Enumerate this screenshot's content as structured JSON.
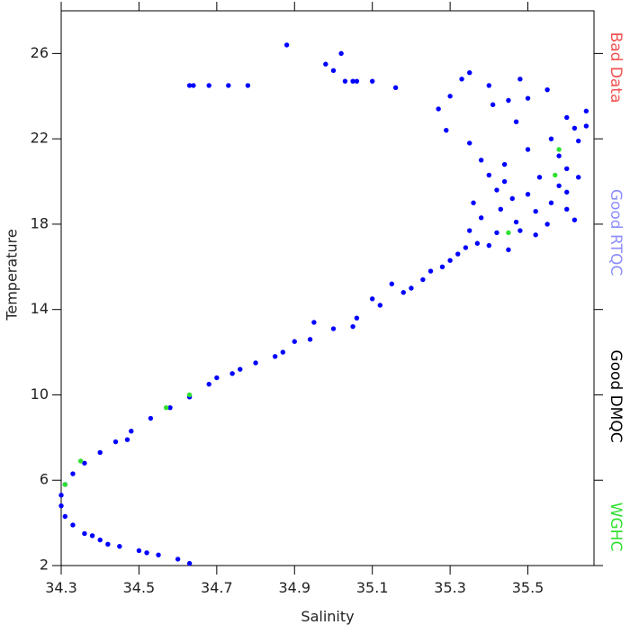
{
  "chart_data": {
    "type": "scatter",
    "x_label": "Salinity",
    "y_label": "Temperature",
    "xlim": [
      34.3,
      35.67
    ],
    "ylim": [
      2,
      28
    ],
    "xticks": [
      34.3,
      34.5,
      34.7,
      34.9,
      35.1,
      35.3,
      35.5
    ],
    "yticks": [
      2,
      6,
      10,
      14,
      18,
      22,
      26
    ],
    "grid": false,
    "series": [
      {
        "name": "Bad Data",
        "color": "#f05050",
        "x": [],
        "y": []
      },
      {
        "name": "Good RTQC",
        "color": "#0000ff",
        "x": [
          34.63,
          34.6,
          34.55,
          34.5,
          34.45,
          34.4,
          34.36,
          34.33,
          34.31,
          34.3,
          34.3,
          34.31,
          34.33,
          34.36,
          34.4,
          34.44,
          34.48,
          34.53,
          34.58,
          34.63,
          34.68,
          34.74,
          34.8,
          34.87,
          34.94,
          35.0,
          35.06,
          35.12,
          35.18,
          35.23,
          35.28,
          35.32,
          35.37,
          35.42,
          35.47,
          35.52,
          35.56,
          35.6,
          35.63,
          34.95,
          35.05,
          34.85,
          34.9,
          35.15,
          35.25,
          34.42,
          34.38,
          34.52,
          34.47,
          34.7,
          34.76,
          35.1,
          35.2,
          35.3,
          35.34,
          34.63,
          34.64,
          34.68,
          34.73,
          34.78,
          34.88,
          34.98,
          35.0,
          35.02,
          35.03,
          35.05,
          35.06,
          35.1,
          35.16,
          35.3,
          35.33,
          35.35,
          35.4,
          35.45,
          35.48,
          35.55,
          35.6,
          35.62,
          35.65,
          35.27,
          35.29,
          35.35,
          35.38,
          35.4,
          35.42,
          35.44,
          35.46,
          35.5,
          35.53,
          35.56,
          35.58,
          35.6,
          35.63,
          35.65,
          35.36,
          35.38,
          35.43,
          35.48,
          35.5,
          35.55,
          35.6,
          35.4,
          35.45,
          35.35,
          35.52,
          35.58,
          35.47,
          35.41,
          35.5,
          35.62,
          35.44
        ],
        "y": [
          2.1,
          2.3,
          2.5,
          2.7,
          2.9,
          3.2,
          3.5,
          3.9,
          4.3,
          4.8,
          5.3,
          5.8,
          6.3,
          6.8,
          7.3,
          7.8,
          8.3,
          8.9,
          9.4,
          9.9,
          10.5,
          11.0,
          11.5,
          12.0,
          12.6,
          13.1,
          13.6,
          14.2,
          14.8,
          15.4,
          16.0,
          16.6,
          17.1,
          17.6,
          18.1,
          18.6,
          19.0,
          19.5,
          20.2,
          13.4,
          13.2,
          11.8,
          12.5,
          15.2,
          15.8,
          3.0,
          3.4,
          2.6,
          7.9,
          10.8,
          11.2,
          14.5,
          15.0,
          16.3,
          16.9,
          24.5,
          24.5,
          24.5,
          24.5,
          24.5,
          26.4,
          25.5,
          25.2,
          26.0,
          24.7,
          24.7,
          24.7,
          24.7,
          24.4,
          24.0,
          24.8,
          25.1,
          24.5,
          23.8,
          24.8,
          24.3,
          23.0,
          22.5,
          23.3,
          23.4,
          22.4,
          21.8,
          21.0,
          20.3,
          19.6,
          20.8,
          19.2,
          21.5,
          20.2,
          22.0,
          21.2,
          20.6,
          21.9,
          22.6,
          19.0,
          18.3,
          18.7,
          17.7,
          19.4,
          18.0,
          18.7,
          17.0,
          16.8,
          17.7,
          17.5,
          19.8,
          22.8,
          23.6,
          23.9,
          18.2,
          20.0
        ]
      },
      {
        "name": "Good DMQC",
        "color": "#000000",
        "x": [],
        "y": []
      },
      {
        "name": "WGHC",
        "color": "#30e030",
        "x": [
          34.35,
          34.31,
          34.57,
          34.63,
          35.45,
          35.58,
          35.57
        ],
        "y": [
          6.9,
          5.8,
          9.4,
          10.0,
          17.6,
          21.5,
          20.3
        ]
      }
    ]
  }
}
